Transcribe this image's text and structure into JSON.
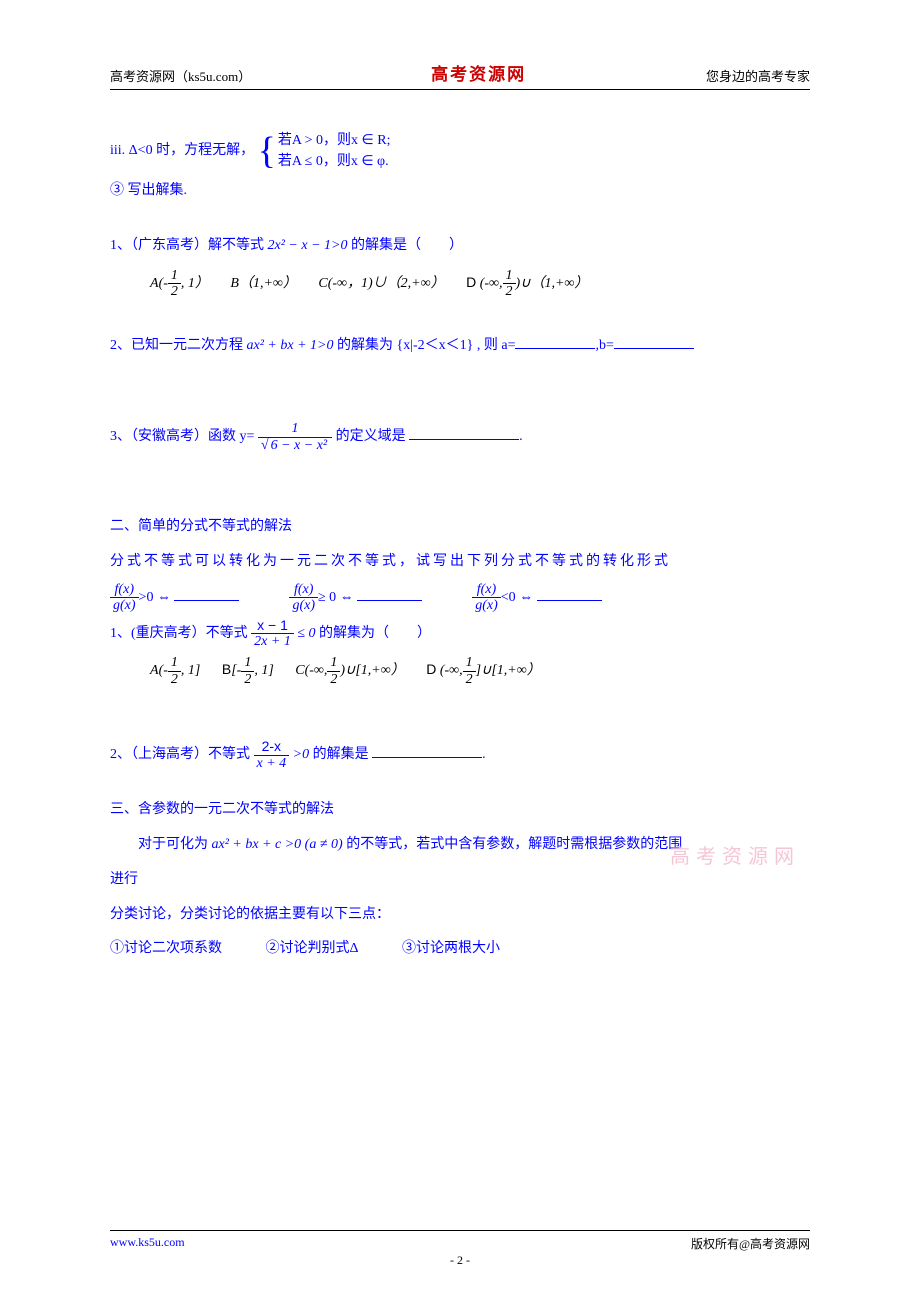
{
  "colors": {
    "text": "#000000",
    "blue": "#0000ff",
    "red": "#cc0000",
    "watermark": "#f5c6d6",
    "background": "#ffffff"
  },
  "typography": {
    "body_font": "SimSun",
    "math_font": "Times New Roman",
    "kai_font": "KaiTi",
    "body_size": 14,
    "header_size": 13,
    "title_size": 17,
    "footer_size": 12
  },
  "header": {
    "left": "高考资源网（ks5u.com）",
    "center": "高考资源网",
    "right": "您身边的高考专家"
  },
  "iii": {
    "prefix": "iii.",
    "cond": "Δ<0 时，方程无解，",
    "row1": "若A > 0，则x ∈ R;",
    "row2": "若A ≤ 0，则x ∈ φ."
  },
  "step3": "③ 写出解集.",
  "q1": {
    "stem_a": "1、（广东高考）解不等式",
    "expr": "2x² − x − 1>0",
    "stem_b": "的解集是（　　）",
    "optA_label": "A",
    "optA_open": "(-",
    "optA_frac_num": "1",
    "optA_frac_den": "2",
    "optA_close": ", 1）",
    "optB": "B（1,+∞）",
    "optC": "C(-∞，1)∪（2,+∞）",
    "optD_label": "D",
    "optD_open": "(-∞,",
    "optD_frac_num": "1",
    "optD_frac_den": "2",
    "optD_close": ")∪（1,+∞）"
  },
  "q2": {
    "stem_a": "2、已知一元二次方程",
    "expr": "ax² + bx + 1>0",
    "stem_b": "的解集为 {x|-2＜x＜1}",
    "tail_a": ", 则 a=",
    "tail_b": ",b="
  },
  "q3": {
    "stem_a": "3、（安徽高考）函数 y=",
    "frac_num": "1",
    "sqrt_arg": "6 − x − x²",
    "stem_b": " 的定义域是",
    "tail": "."
  },
  "sec2": {
    "title": "二、简单的分式不等式的解法",
    "intro": "分式不等式可以转化为一元二次不等式，试写出下列分式不等式的转化形式",
    "fnum": "f(x)",
    "gden": "g(x)",
    "rel1": ">0 ⇔",
    "rel2": "≥ 0 ⇔",
    "rel3": "<0 ⇔"
  },
  "s2q1": {
    "stem_a": "1、(重庆高考）不等式",
    "frac_num": "x − 1",
    "frac_den": "2x + 1",
    "rel": "≤ 0",
    "stem_b": "的解集为（　　）",
    "optA_label": "A",
    "optA_open": "(-",
    "half_num": "1",
    "half_den": "2",
    "optA_close": ", 1]",
    "optB_label": "B",
    "optB_open": "[-",
    "optB_close": ", 1]",
    "optC_label": "C",
    "optC_open": "(-∞,",
    "optC_close": ")∪[1,+∞）",
    "optD_label": "D",
    "optD_open": "(-∞,",
    "optD_close": "]∪[1,+∞）"
  },
  "s2q2": {
    "stem_a": "2、（上海高考）不等式",
    "frac_num": "2-x",
    "frac_den": "x + 4",
    "rel": ">0",
    "stem_b": "的解集是",
    "tail": "."
  },
  "sec3": {
    "title": "三、含参数的一元二次不等式的解法",
    "line1_a": "　　对于可化为",
    "expr": "ax² + bx + c >0 (a ≠ 0)",
    "line1_b": "的不等式，若式中含有参数，解题时需根据参数的范围",
    "line2": "进行",
    "line3": "分类讨论，分类讨论的依据主要有以下三点：",
    "pt1": "①讨论二次项系数",
    "pt2": "②讨论判别式Δ",
    "pt3": "③讨论两根大小"
  },
  "watermark": "高考资源网",
  "footer": {
    "left": "www.ks5u.com",
    "right": "版权所有@高考资源网",
    "page": "- 2 -"
  }
}
